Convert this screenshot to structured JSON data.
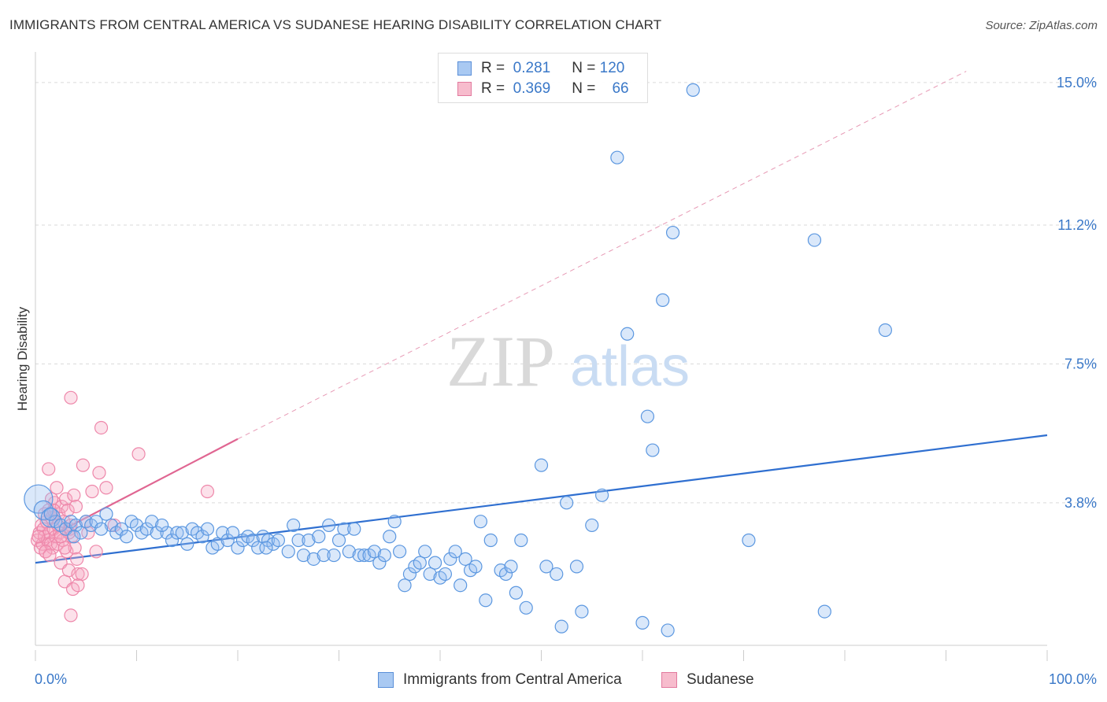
{
  "title": "IMMIGRANTS FROM CENTRAL AMERICA VS SUDANESE HEARING DISABILITY CORRELATION CHART",
  "source": "Source: ZipAtlas.com",
  "watermark": {
    "zip": "ZIP",
    "atlas": "atlas"
  },
  "legend": {
    "rows": [
      {
        "r_label": "R =",
        "r_value": "0.281",
        "n_label": "N =",
        "n_value": "120",
        "color": "#a9c9f2",
        "border": "#5a8fd8"
      },
      {
        "r_label": "R =",
        "r_value": "0.369",
        "n_label": "N =",
        "n_value": "66",
        "color": "#f7bccd",
        "border": "#e27a9e"
      }
    ]
  },
  "bottom_legend": [
    {
      "label": "Immigrants from Central America",
      "color": "#a9c9f2",
      "border": "#5a8fd8"
    },
    {
      "label": "Sudanese",
      "color": "#f7bccd",
      "border": "#e27a9e"
    }
  ],
  "chart_data": {
    "type": "scatter",
    "title": "IMMIGRANTS FROM CENTRAL AMERICA VS SUDANESE HEARING DISABILITY CORRELATION CHART",
    "xlabel": "",
    "ylabel": "Hearing Disability",
    "xlim": [
      0,
      100
    ],
    "ylim": [
      0,
      15.5
    ],
    "x_tick_labels": [
      "0.0%",
      "100.0%"
    ],
    "y_ticks": [
      3.8,
      7.5,
      11.2,
      15.0
    ],
    "y_tick_labels": [
      "3.8%",
      "7.5%",
      "11.2%",
      "15.0%"
    ],
    "grid": "horizontal dashed",
    "legend_position": "top-center",
    "series": [
      {
        "name": "Immigrants from Central America",
        "color": "#5b97e0",
        "trend": {
          "x0": 0,
          "y0": 2.2,
          "x1": 100,
          "y1": 5.6
        },
        "points": [
          [
            0.3,
            3.9
          ],
          [
            0.8,
            3.6
          ],
          [
            1.5,
            3.4
          ],
          [
            2,
            3.3
          ],
          [
            2.5,
            3.2
          ],
          [
            3,
            3.1
          ],
          [
            3.5,
            3.3
          ],
          [
            4,
            3.2
          ],
          [
            4.5,
            3.0
          ],
          [
            5,
            3.3
          ],
          [
            5.5,
            3.2
          ],
          [
            6,
            3.3
          ],
          [
            7,
            3.5
          ],
          [
            7.5,
            3.2
          ],
          [
            8,
            3.0
          ],
          [
            8.5,
            3.1
          ],
          [
            9,
            2.9
          ],
          [
            9.5,
            3.3
          ],
          [
            10,
            3.2
          ],
          [
            10.5,
            3.0
          ],
          [
            11,
            3.1
          ],
          [
            11.5,
            3.3
          ],
          [
            12,
            3.0
          ],
          [
            13,
            3.0
          ],
          [
            13.5,
            2.8
          ],
          [
            14,
            3.0
          ],
          [
            14.5,
            3.0
          ],
          [
            15,
            2.7
          ],
          [
            15.5,
            3.1
          ],
          [
            16,
            3.0
          ],
          [
            16.5,
            2.9
          ],
          [
            17,
            3.1
          ],
          [
            17.5,
            2.6
          ],
          [
            18,
            2.7
          ],
          [
            18.5,
            3.0
          ],
          [
            19,
            2.8
          ],
          [
            19.5,
            3.0
          ],
          [
            20,
            2.6
          ],
          [
            20.5,
            2.8
          ],
          [
            21,
            2.9
          ],
          [
            21.5,
            2.8
          ],
          [
            22,
            2.6
          ],
          [
            22.5,
            2.9
          ],
          [
            23,
            2.8
          ],
          [
            23.5,
            2.7
          ],
          [
            24,
            2.8
          ],
          [
            25,
            2.5
          ],
          [
            25.5,
            3.2
          ],
          [
            26,
            2.8
          ],
          [
            26.5,
            2.4
          ],
          [
            27,
            2.8
          ],
          [
            27.5,
            2.3
          ],
          [
            28,
            2.9
          ],
          [
            28.5,
            2.4
          ],
          [
            29,
            3.2
          ],
          [
            29.5,
            2.4
          ],
          [
            30,
            2.8
          ],
          [
            30.5,
            3.1
          ],
          [
            31,
            2.5
          ],
          [
            31.5,
            3.1
          ],
          [
            32,
            2.4
          ],
          [
            32.5,
            2.4
          ],
          [
            33,
            2.4
          ],
          [
            33.5,
            2.5
          ],
          [
            34,
            2.2
          ],
          [
            34.5,
            2.4
          ],
          [
            35,
            2.9
          ],
          [
            35.5,
            3.3
          ],
          [
            36,
            2.5
          ],
          [
            36.5,
            1.6
          ],
          [
            37,
            1.9
          ],
          [
            37.5,
            2.1
          ],
          [
            38,
            2.2
          ],
          [
            38.5,
            2.5
          ],
          [
            39,
            1.9
          ],
          [
            39.5,
            2.2
          ],
          [
            40,
            1.8
          ],
          [
            40.5,
            1.9
          ],
          [
            41,
            2.3
          ],
          [
            41.5,
            2.5
          ],
          [
            42,
            1.6
          ],
          [
            42.5,
            2.3
          ],
          [
            43,
            2.0
          ],
          [
            43.5,
            2.1
          ],
          [
            44,
            3.3
          ],
          [
            44.5,
            1.2
          ],
          [
            45,
            2.8
          ],
          [
            46,
            2.0
          ],
          [
            46.5,
            1.9
          ],
          [
            47,
            2.1
          ],
          [
            47.5,
            1.4
          ],
          [
            48,
            2.8
          ],
          [
            48.5,
            1.0
          ],
          [
            50,
            4.8
          ],
          [
            50.5,
            2.1
          ],
          [
            51.5,
            1.9
          ],
          [
            52,
            0.5
          ],
          [
            52.5,
            3.8
          ],
          [
            53.5,
            2.1
          ],
          [
            54,
            0.9
          ],
          [
            55,
            3.2
          ],
          [
            56,
            4.0
          ],
          [
            57.5,
            13.0
          ],
          [
            58.5,
            8.3
          ],
          [
            60,
            0.6
          ],
          [
            60.5,
            6.1
          ],
          [
            61,
            5.2
          ],
          [
            62,
            9.2
          ],
          [
            62.5,
            0.4
          ],
          [
            63,
            11.0
          ],
          [
            65,
            14.8
          ],
          [
            70.5,
            2.8
          ],
          [
            77,
            10.8
          ],
          [
            78,
            0.9
          ],
          [
            84,
            8.4
          ],
          [
            1.5,
            3.5
          ],
          [
            3.8,
            2.9
          ],
          [
            6.5,
            3.1
          ],
          [
            12.5,
            3.2
          ],
          [
            22.8,
            2.6
          ]
        ]
      },
      {
        "name": "Sudanese",
        "color": "#ee87aa",
        "trend": {
          "x0": 0,
          "y0": 2.7,
          "x1": 20,
          "y1": 5.5
        },
        "trend_ext": {
          "x0": 20,
          "y0": 5.5,
          "x1": 92,
          "y1": 15.3
        },
        "points": [
          [
            0.2,
            2.8
          ],
          [
            0.4,
            3.0
          ],
          [
            0.5,
            2.6
          ],
          [
            0.6,
            3.2
          ],
          [
            0.7,
            2.7
          ],
          [
            0.8,
            3.1
          ],
          [
            0.9,
            2.9
          ],
          [
            1.0,
            2.5
          ],
          [
            1.1,
            3.3
          ],
          [
            1.2,
            2.8
          ],
          [
            1.3,
            3.6
          ],
          [
            1.4,
            3.0
          ],
          [
            1.5,
            2.7
          ],
          [
            1.6,
            3.4
          ],
          [
            1.7,
            2.6
          ],
          [
            1.8,
            3.1
          ],
          [
            1.9,
            3.8
          ],
          [
            2.0,
            2.9
          ],
          [
            2.1,
            4.2
          ],
          [
            2.2,
            2.7
          ],
          [
            2.3,
            3.5
          ],
          [
            2.4,
            3.0
          ],
          [
            2.5,
            2.2
          ],
          [
            2.6,
            3.7
          ],
          [
            2.7,
            2.8
          ],
          [
            2.8,
            3.3
          ],
          [
            2.9,
            1.7
          ],
          [
            3.0,
            3.9
          ],
          [
            3.1,
            2.5
          ],
          [
            3.2,
            3.6
          ],
          [
            3.3,
            2.0
          ],
          [
            3.4,
            3.1
          ],
          [
            3.5,
            0.8
          ],
          [
            3.6,
            2.9
          ],
          [
            3.7,
            1.5
          ],
          [
            3.8,
            4.0
          ],
          [
            3.9,
            2.6
          ],
          [
            4.0,
            3.7
          ],
          [
            4.1,
            2.3
          ],
          [
            4.2,
            1.9
          ],
          [
            3.5,
            3.2
          ],
          [
            1.3,
            4.7
          ],
          [
            3.5,
            6.6
          ],
          [
            6.5,
            5.8
          ],
          [
            10.2,
            5.1
          ],
          [
            4.7,
            4.8
          ],
          [
            6.3,
            4.6
          ],
          [
            7.0,
            4.2
          ],
          [
            5.6,
            4.1
          ],
          [
            17.0,
            4.1
          ],
          [
            7.8,
            3.2
          ],
          [
            5.2,
            3.0
          ],
          [
            5.0,
            3.3
          ],
          [
            4.6,
            1.9
          ],
          [
            1.0,
            2.5
          ],
          [
            0.3,
            2.9
          ],
          [
            2.2,
            3.2
          ],
          [
            1.6,
            3.9
          ],
          [
            2.9,
            2.6
          ],
          [
            3.3,
            3.0
          ],
          [
            0.9,
            3.5
          ],
          [
            2.5,
            2.9
          ],
          [
            1.4,
            2.4
          ],
          [
            6.0,
            2.5
          ],
          [
            4.2,
            1.6
          ],
          [
            1.8,
            3.6
          ]
        ]
      }
    ]
  }
}
